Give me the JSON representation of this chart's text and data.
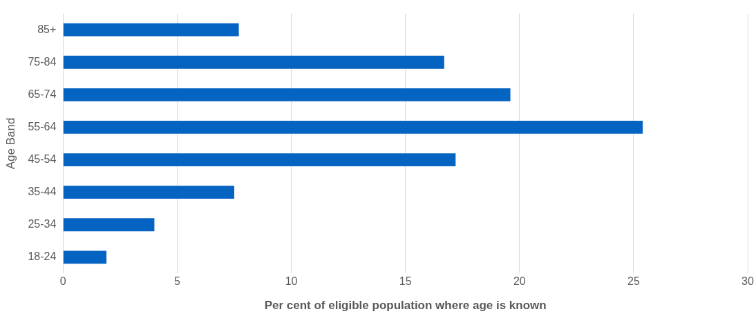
{
  "chart_data": {
    "type": "bar",
    "orientation": "horizontal",
    "xlabel": "Per cent of eligible population where age is known",
    "ylabel": "Age Band",
    "categories": [
      "85+",
      "75-84",
      "65-74",
      "55-64",
      "45-54",
      "35-44",
      "25-34",
      "18-24"
    ],
    "values": [
      7.7,
      16.7,
      19.6,
      25.4,
      17.2,
      7.5,
      4.0,
      1.9
    ],
    "color": "#0563c1",
    "xlim": [
      0,
      30
    ],
    "xticks": [
      0,
      5,
      10,
      15,
      20,
      25,
      30
    ],
    "grid": "x",
    "legend": false
  }
}
